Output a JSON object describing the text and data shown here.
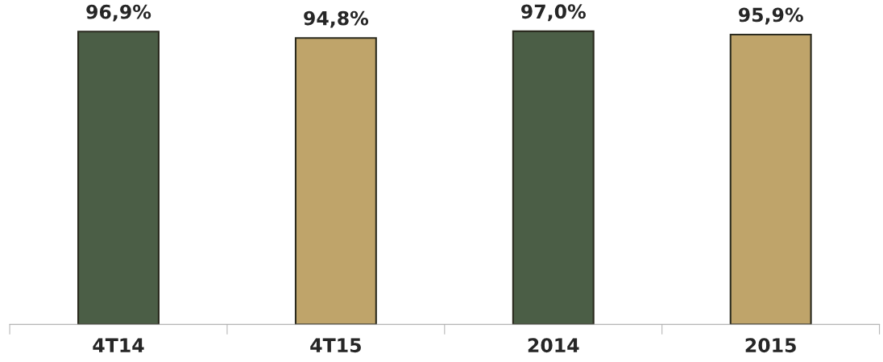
{
  "chart_data": {
    "type": "bar",
    "categories": [
      "4T14",
      "4T15",
      "2014",
      "2015"
    ],
    "values": [
      96.9,
      94.8,
      97.0,
      95.9
    ],
    "colors": [
      "#4b5e46",
      "#bfa46a",
      "#4b5e46",
      "#bfa46a"
    ],
    "value_labels": [
      "96,9%",
      "94,8%",
      "97,0%",
      "95,9%"
    ],
    "tick_labels": "x",
    "grid": false,
    "legend": false
  }
}
